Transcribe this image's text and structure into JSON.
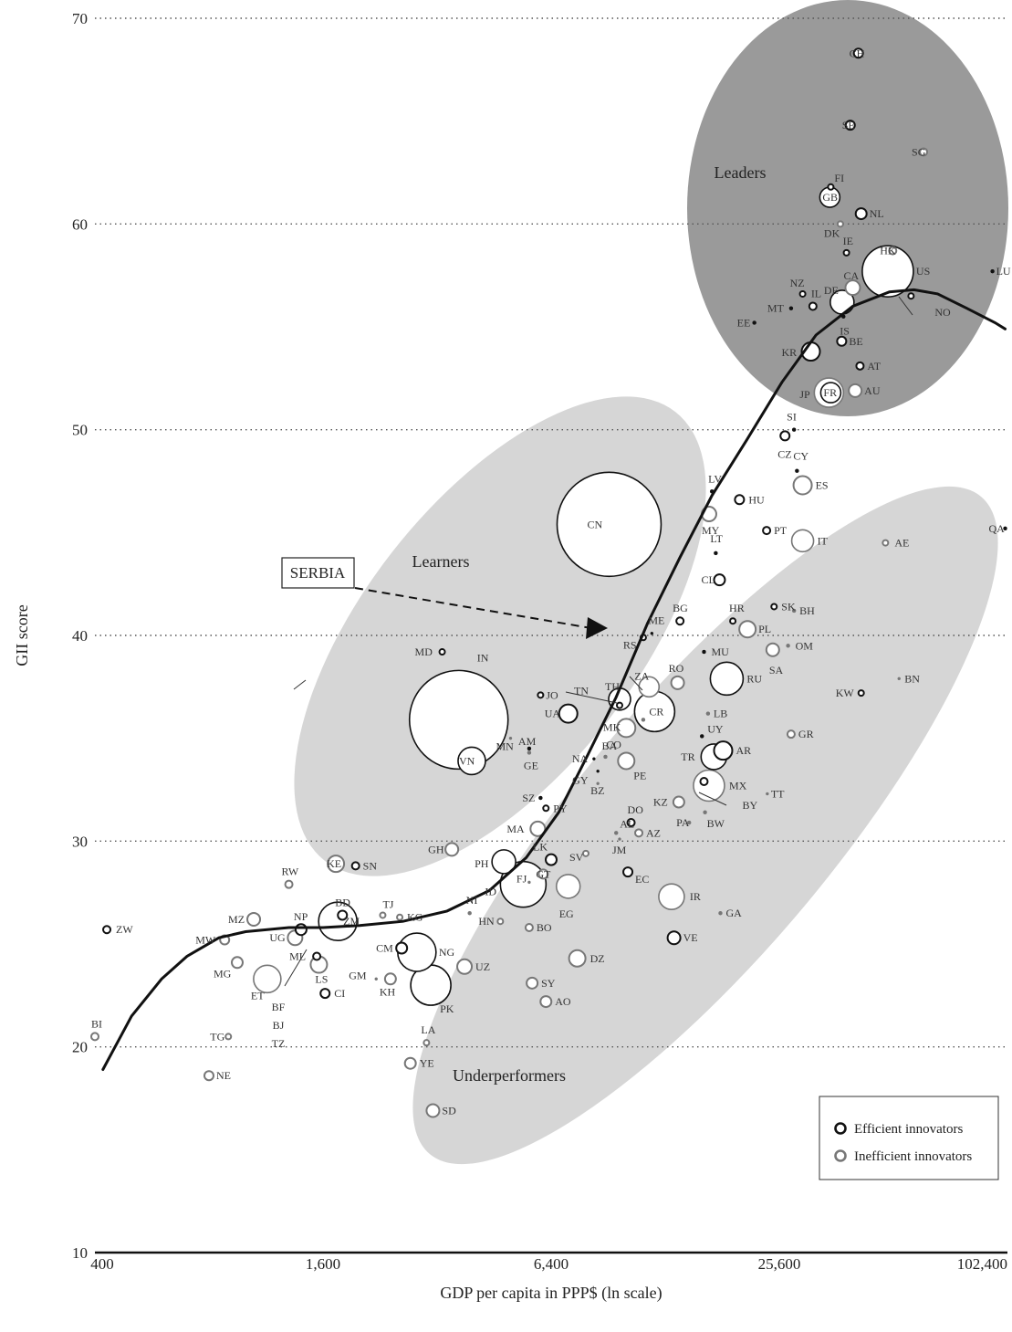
{
  "chart_data": {
    "type": "scatter",
    "xlabel": "GDP per capita in PPP$ (ln scale)",
    "ylabel": "GII score",
    "x_scale": "log",
    "xlim": [
      400,
      102400
    ],
    "ylim": [
      10,
      70
    ],
    "x_ticks": [
      400,
      1600,
      6400,
      25600,
      102400
    ],
    "x_tick_labels": [
      "400",
      "1,600",
      "6,400",
      "25,600",
      "102,400"
    ],
    "y_ticks": [
      10,
      20,
      30,
      40,
      50,
      60,
      70
    ],
    "y_tick_labels": [
      "10",
      "20",
      "30",
      "40",
      "50",
      "60",
      "70"
    ],
    "grid": "horizontal dotted",
    "groups": [
      "Leaders",
      "Learners",
      "Underperformers"
    ],
    "annotation": "SERBIA",
    "legend": {
      "position": "bottom-right",
      "entries": [
        {
          "label": "Efficient innovators",
          "color": "#111111"
        },
        {
          "label": "Inefficient innovators",
          "color": "#777777"
        }
      ]
    },
    "colors": {
      "efficient": "#111111",
      "inefficient": "#777777",
      "leaders_bg": "#9a9a9a",
      "group_bg": "#d6d6d6"
    },
    "trend": [
      [
        420,
        18.9
      ],
      [
        500,
        21.5
      ],
      [
        600,
        23.3
      ],
      [
        700,
        24.4
      ],
      [
        850,
        25.3
      ],
      [
        1000,
        25.6
      ],
      [
        1300,
        25.8
      ],
      [
        1600,
        25.8
      ],
      [
        2000,
        25.9
      ],
      [
        2600,
        26.1
      ],
      [
        3400,
        26.6
      ],
      [
        4400,
        27.6
      ],
      [
        5500,
        29.2
      ],
      [
        6700,
        31.4
      ],
      [
        8000,
        34.2
      ],
      [
        9500,
        37.0
      ],
      [
        11500,
        40.6
      ],
      [
        14000,
        43.8
      ],
      [
        17000,
        46.8
      ],
      [
        21000,
        49.5
      ],
      [
        26000,
        52.3
      ],
      [
        32000,
        54.6
      ],
      [
        40000,
        56.0
      ],
      [
        50000,
        56.7
      ],
      [
        58000,
        56.8
      ],
      [
        67000,
        56.6
      ],
      [
        80000,
        55.9
      ],
      [
        95000,
        55.2
      ],
      [
        101000,
        54.9
      ]
    ],
    "points": [
      {
        "label": "CH",
        "gdp": 41400,
        "gii": 68.3,
        "size": 5,
        "type": "eff"
      },
      {
        "label": "SE",
        "gdp": 39400,
        "gii": 64.8,
        "size": 5,
        "type": "eff"
      },
      {
        "label": "SG",
        "gdp": 61500,
        "gii": 63.5,
        "size": 4,
        "type": "ineff"
      },
      {
        "label": "FI",
        "gdp": 35000,
        "gii": 61.8,
        "size": 3,
        "type": "eff"
      },
      {
        "label": "GB",
        "gdp": 34800,
        "gii": 61.3,
        "size": 11,
        "type": "eff"
      },
      {
        "label": "NL",
        "gdp": 42100,
        "gii": 60.5,
        "size": 6,
        "type": "eff"
      },
      {
        "label": "DK",
        "gdp": 37100,
        "gii": 60.0,
        "size": 3,
        "type": "ineff"
      },
      {
        "label": "IE",
        "gdp": 38500,
        "gii": 58.6,
        "size": 3,
        "type": "eff"
      },
      {
        "label": "HK",
        "gdp": 51000,
        "gii": 58.7,
        "size": 4,
        "type": "ineff"
      },
      {
        "label": "US",
        "gdp": 49500,
        "gii": 57.7,
        "size": 28,
        "type": "eff"
      },
      {
        "label": "LU",
        "gdp": 93500,
        "gii": 57.7,
        "size": 2,
        "type": "eff"
      },
      {
        "label": "NZ",
        "gdp": 29500,
        "gii": 56.6,
        "size": 3,
        "type": "eff"
      },
      {
        "label": "CA",
        "gdp": 40000,
        "gii": 56.9,
        "size": 8,
        "type": "ineff"
      },
      {
        "label": "DE",
        "gdp": 37500,
        "gii": 56.2,
        "size": 13,
        "type": "eff"
      },
      {
        "label": "IL",
        "gdp": 31400,
        "gii": 56.0,
        "size": 4,
        "type": "eff"
      },
      {
        "label": "MT",
        "gdp": 27500,
        "gii": 55.9,
        "size": 2,
        "type": "eff"
      },
      {
        "label": "IS",
        "gdp": 37800,
        "gii": 55.5,
        "size": 2,
        "type": "eff"
      },
      {
        "label": "NO",
        "gdp": 57000,
        "gii": 56.5,
        "size": 3,
        "type": "eff"
      },
      {
        "label": "EE",
        "gdp": 22000,
        "gii": 55.2,
        "size": 2,
        "type": "eff"
      },
      {
        "label": "KR",
        "gdp": 31000,
        "gii": 53.8,
        "size": 10,
        "type": "eff"
      },
      {
        "label": "BE",
        "gdp": 37400,
        "gii": 54.3,
        "size": 5,
        "type": "eff"
      },
      {
        "label": "AT",
        "gdp": 41800,
        "gii": 53.1,
        "size": 4,
        "type": "eff"
      },
      {
        "label": "JP",
        "gdp": 34600,
        "gii": 51.8,
        "size": 16,
        "type": "ineff"
      },
      {
        "label": "FR",
        "gdp": 35000,
        "gii": 51.8,
        "size": 11,
        "type": "eff"
      },
      {
        "label": "AU",
        "gdp": 40600,
        "gii": 51.9,
        "size": 7,
        "type": "ineff"
      },
      {
        "label": "SI",
        "gdp": 28000,
        "gii": 50.0,
        "size": 2,
        "type": "eff"
      },
      {
        "label": "CZ",
        "gdp": 26500,
        "gii": 49.7,
        "size": 5,
        "type": "eff"
      },
      {
        "label": "CY",
        "gdp": 28500,
        "gii": 48.0,
        "size": 2,
        "type": "eff"
      },
      {
        "label": "ES",
        "gdp": 29500,
        "gii": 47.3,
        "size": 10,
        "type": "ineff"
      },
      {
        "label": "LV",
        "gdp": 17000,
        "gii": 47.0,
        "size": 2,
        "type": "eff"
      },
      {
        "label": "HU",
        "gdp": 20100,
        "gii": 46.6,
        "size": 5,
        "type": "eff"
      },
      {
        "label": "MY",
        "gdp": 16700,
        "gii": 45.9,
        "size": 8,
        "type": "ineff"
      },
      {
        "label": "PT",
        "gdp": 23700,
        "gii": 45.1,
        "size": 4,
        "type": "eff"
      },
      {
        "label": "CN",
        "gdp": 9100,
        "gii": 45.4,
        "size": 57,
        "type": "eff"
      },
      {
        "label": "IT",
        "gdp": 29500,
        "gii": 44.6,
        "size": 12,
        "type": "ineff"
      },
      {
        "label": "QA",
        "gdp": 101000,
        "gii": 45.2,
        "size": 2,
        "type": "eff"
      },
      {
        "label": "AE",
        "gdp": 48800,
        "gii": 44.5,
        "size": 3,
        "type": "ineff"
      },
      {
        "label": "LT",
        "gdp": 17400,
        "gii": 44.0,
        "size": 2,
        "type": "eff"
      },
      {
        "label": "CL",
        "gdp": 17800,
        "gii": 42.7,
        "size": 6,
        "type": "eff"
      },
      {
        "label": "SK",
        "gdp": 24800,
        "gii": 41.4,
        "size": 3,
        "type": "eff"
      },
      {
        "label": "BH",
        "gdp": 28000,
        "gii": 41.2,
        "size": 2,
        "type": "ineff"
      },
      {
        "label": "BG",
        "gdp": 14000,
        "gii": 40.7,
        "size": 4,
        "type": "eff"
      },
      {
        "label": "HR",
        "gdp": 19300,
        "gii": 40.7,
        "size": 3,
        "type": "eff"
      },
      {
        "label": "PL",
        "gdp": 21100,
        "gii": 40.3,
        "size": 9,
        "type": "ineff"
      },
      {
        "label": "ME",
        "gdp": 11800,
        "gii": 40.1,
        "size": 1.5,
        "type": "eff"
      },
      {
        "label": "RS",
        "gdp": 11200,
        "gii": 39.9,
        "size": 3,
        "type": "eff"
      },
      {
        "label": "OM",
        "gdp": 27000,
        "gii": 39.5,
        "size": 2,
        "type": "ineff"
      },
      {
        "label": "SA",
        "gdp": 24600,
        "gii": 39.3,
        "size": 7,
        "type": "ineff"
      },
      {
        "label": "MD",
        "gdp": 3300,
        "gii": 39.2,
        "size": 3,
        "type": "eff"
      },
      {
        "label": "MU",
        "gdp": 16200,
        "gii": 39.2,
        "size": 2,
        "type": "eff"
      },
      {
        "label": "RU",
        "gdp": 18600,
        "gii": 37.9,
        "size": 18,
        "type": "eff"
      },
      {
        "label": "BN",
        "gdp": 53000,
        "gii": 37.9,
        "size": 1.5,
        "type": "ineff"
      },
      {
        "label": "RO",
        "gdp": 13800,
        "gii": 37.7,
        "size": 7,
        "type": "ineff"
      },
      {
        "label": "ZA",
        "gdp": 11600,
        "gii": 37.5,
        "size": 11,
        "type": "ineff"
      },
      {
        "label": "IN",
        "gdp": 3650,
        "gii": 35.9,
        "size": 54,
        "type": "eff"
      },
      {
        "label": "TH",
        "gdp": 9700,
        "gii": 36.9,
        "size": 12,
        "type": "eff"
      },
      {
        "label": "JO",
        "gdp": 6000,
        "gii": 37.1,
        "size": 3,
        "type": "eff"
      },
      {
        "label": "KW",
        "gdp": 42100,
        "gii": 37.2,
        "size": 3,
        "type": "eff"
      },
      {
        "label": "TN",
        "gdp": 9700,
        "gii": 36.6,
        "size": 3,
        "type": "eff"
      },
      {
        "label": "CR",
        "gdp": 12000,
        "gii": 36.3,
        "size": 22,
        "type": "eff"
      },
      {
        "label": "LB",
        "gdp": 16600,
        "gii": 36.2,
        "size": 2,
        "type": "ineff"
      },
      {
        "label": "UA",
        "gdp": 7100,
        "gii": 36.2,
        "size": 10,
        "type": "eff"
      },
      {
        "label": "MK",
        "gdp": 11200,
        "gii": 35.9,
        "size": 2,
        "type": "ineff"
      },
      {
        "label": "CO",
        "gdp": 10100,
        "gii": 35.5,
        "size": 10,
        "type": "ineff"
      },
      {
        "label": "GR",
        "gdp": 27500,
        "gii": 35.2,
        "size": 4,
        "type": "ineff"
      },
      {
        "label": "UY",
        "gdp": 16000,
        "gii": 35.1,
        "size": 2,
        "type": "eff"
      },
      {
        "label": "MN",
        "gdp": 5000,
        "gii": 35.0,
        "size": 1.5,
        "type": "ineff"
      },
      {
        "label": "AM",
        "gdp": 5600,
        "gii": 34.5,
        "size": 2,
        "type": "eff"
      },
      {
        "label": "GE",
        "gdp": 5600,
        "gii": 34.3,
        "size": 2,
        "type": "ineff"
      },
      {
        "label": "AR",
        "gdp": 18200,
        "gii": 34.4,
        "size": 10,
        "type": "eff"
      },
      {
        "label": "TR",
        "gdp": 17200,
        "gii": 34.1,
        "size": 14,
        "type": "eff"
      },
      {
        "label": "BA",
        "gdp": 8900,
        "gii": 34.1,
        "size": 2,
        "type": "ineff"
      },
      {
        "label": "NA",
        "gdp": 8300,
        "gii": 34.0,
        "size": 1.5,
        "type": "eff"
      },
      {
        "label": "VN",
        "gdp": 3950,
        "gii": 33.9,
        "size": 15,
        "type": "eff"
      },
      {
        "label": "PE",
        "gdp": 10100,
        "gii": 33.9,
        "size": 9,
        "type": "ineff"
      },
      {
        "label": "GY",
        "gdp": 8500,
        "gii": 33.4,
        "size": 1.5,
        "type": "eff"
      },
      {
        "label": "BY",
        "gdp": 16200,
        "gii": 32.9,
        "size": 4,
        "type": "eff"
      },
      {
        "label": "MX",
        "gdp": 16700,
        "gii": 32.7,
        "size": 17,
        "type": "ineff"
      },
      {
        "label": "BZ",
        "gdp": 8500,
        "gii": 32.8,
        "size": 1.5,
        "type": "ineff"
      },
      {
        "label": "TT",
        "gdp": 23800,
        "gii": 32.3,
        "size": 1.5,
        "type": "ineff"
      },
      {
        "label": "SZ",
        "gdp": 6000,
        "gii": 32.1,
        "size": 2,
        "type": "eff"
      },
      {
        "label": "KZ",
        "gdp": 13900,
        "gii": 31.9,
        "size": 6,
        "type": "ineff"
      },
      {
        "label": "PY",
        "gdp": 6200,
        "gii": 31.6,
        "size": 3,
        "type": "eff"
      },
      {
        "label": "BW",
        "gdp": 16300,
        "gii": 31.4,
        "size": 2,
        "type": "ineff"
      },
      {
        "label": "DO",
        "gdp": 10400,
        "gii": 30.9,
        "size": 4,
        "type": "eff"
      },
      {
        "label": "PA",
        "gdp": 14800,
        "gii": 30.9,
        "size": 2,
        "type": "ineff"
      },
      {
        "label": "MA",
        "gdp": 5900,
        "gii": 30.6,
        "size": 8,
        "type": "ineff"
      },
      {
        "label": "AL",
        "gdp": 9500,
        "gii": 30.4,
        "size": 2,
        "type": "ineff"
      },
      {
        "label": "AZ",
        "gdp": 10900,
        "gii": 30.4,
        "size": 4,
        "type": "ineff"
      },
      {
        "label": "JM",
        "gdp": 9700,
        "gii": 30.1,
        "size": 1.5,
        "type": "ineff"
      },
      {
        "label": "GH",
        "gdp": 3500,
        "gii": 29.6,
        "size": 7,
        "type": "ineff"
      },
      {
        "label": "SV",
        "gdp": 7900,
        "gii": 29.4,
        "size": 3,
        "type": "ineff"
      },
      {
        "label": "LK",
        "gdp": 6400,
        "gii": 29.1,
        "size": 6,
        "type": "eff"
      },
      {
        "label": "PH",
        "gdp": 4800,
        "gii": 29.0,
        "size": 13,
        "type": "eff"
      },
      {
        "label": "KE",
        "gdp": 1730,
        "gii": 28.9,
        "size": 9,
        "type": "ineff"
      },
      {
        "label": "SN",
        "gdp": 1950,
        "gii": 28.8,
        "size": 4,
        "type": "eff"
      },
      {
        "label": "EC",
        "gdp": 10200,
        "gii": 28.5,
        "size": 5,
        "type": "eff"
      },
      {
        "label": "GT",
        "gdp": 6100,
        "gii": 28.4,
        "size": 5,
        "type": "ineff"
      },
      {
        "label": "FJ",
        "gdp": 5600,
        "gii": 28.0,
        "size": 1.5,
        "type": "ineff"
      },
      {
        "label": "ID",
        "gdp": 5400,
        "gii": 27.9,
        "size": 25,
        "type": "eff"
      },
      {
        "label": "RW",
        "gdp": 1300,
        "gii": 27.9,
        "size": 4,
        "type": "ineff"
      },
      {
        "label": "EG",
        "gdp": 7100,
        "gii": 27.8,
        "size": 13,
        "type": "ineff"
      },
      {
        "label": "IR",
        "gdp": 13300,
        "gii": 27.3,
        "size": 14,
        "type": "ineff"
      },
      {
        "label": "NI",
        "gdp": 3900,
        "gii": 26.5,
        "size": 2,
        "type": "ineff"
      },
      {
        "label": "GA",
        "gdp": 17900,
        "gii": 26.5,
        "size": 2,
        "type": "ineff"
      },
      {
        "label": "TJ",
        "gdp": 2300,
        "gii": 26.4,
        "size": 3,
        "type": "ineff"
      },
      {
        "label": "BD",
        "gdp": 1800,
        "gii": 26.4,
        "size": 5,
        "type": "eff"
      },
      {
        "label": "KG",
        "gdp": 2550,
        "gii": 26.3,
        "size": 3,
        "type": "ineff"
      },
      {
        "label": "ZM",
        "gdp": 1750,
        "gii": 26.1,
        "size": 21,
        "type": "eff"
      },
      {
        "label": "MZ",
        "gdp": 1050,
        "gii": 26.2,
        "size": 7,
        "type": "ineff"
      },
      {
        "label": "HN",
        "gdp": 4700,
        "gii": 26.1,
        "size": 3,
        "type": "ineff"
      },
      {
        "label": "ZW",
        "gdp": 430,
        "gii": 25.7,
        "size": 4,
        "type": "eff"
      },
      {
        "label": "NP",
        "gdp": 1400,
        "gii": 25.7,
        "size": 6,
        "type": "eff"
      },
      {
        "label": "BO",
        "gdp": 5600,
        "gii": 25.8,
        "size": 4,
        "type": "ineff"
      },
      {
        "label": "UG",
        "gdp": 1350,
        "gii": 25.3,
        "size": 8,
        "type": "ineff"
      },
      {
        "label": "VE",
        "gdp": 13500,
        "gii": 25.3,
        "size": 7,
        "type": "eff"
      },
      {
        "label": "MW",
        "gdp": 880,
        "gii": 25.2,
        "size": 5,
        "type": "ineff"
      },
      {
        "label": "MG",
        "gdp": 950,
        "gii": 24.1,
        "size": 6,
        "type": "ineff"
      },
      {
        "label": "ML",
        "gdp": 1540,
        "gii": 24.4,
        "size": 4,
        "type": "eff"
      },
      {
        "label": "CM",
        "gdp": 2580,
        "gii": 24.8,
        "size": 6,
        "type": "eff"
      },
      {
        "label": "NG",
        "gdp": 2830,
        "gii": 24.6,
        "size": 21,
        "type": "eff"
      },
      {
        "label": "DZ",
        "gdp": 7500,
        "gii": 24.3,
        "size": 9,
        "type": "ineff"
      },
      {
        "label": "LS",
        "gdp": 1560,
        "gii": 24.0,
        "size": 9,
        "type": "ineff"
      },
      {
        "label": "UZ",
        "gdp": 3780,
        "gii": 23.9,
        "size": 8,
        "type": "ineff"
      },
      {
        "label": "ET",
        "gdp": 1140,
        "gii": 23.3,
        "size": 15,
        "type": "ineff"
      },
      {
        "label": "GM",
        "gdp": 2210,
        "gii": 23.3,
        "size": 1.5,
        "type": "ineff"
      },
      {
        "label": "KH",
        "gdp": 2410,
        "gii": 23.3,
        "size": 6,
        "type": "ineff"
      },
      {
        "label": "PK",
        "gdp": 3080,
        "gii": 23.0,
        "size": 22,
        "type": "eff"
      },
      {
        "label": "SY",
        "gdp": 5700,
        "gii": 23.1,
        "size": 6,
        "type": "ineff"
      },
      {
        "label": "CI",
        "gdp": 1620,
        "gii": 22.6,
        "size": 5,
        "type": "eff"
      },
      {
        "label": "AO",
        "gdp": 6200,
        "gii": 22.2,
        "size": 6,
        "type": "ineff"
      },
      {
        "label": "BI",
        "gdp": 400,
        "gii": 20.5,
        "size": 4,
        "type": "ineff"
      },
      {
        "label": "TG",
        "gdp": 900,
        "gii": 20.5,
        "size": 3,
        "type": "ineff"
      },
      {
        "label": "LA",
        "gdp": 3000,
        "gii": 20.2,
        "size": 3,
        "type": "ineff"
      },
      {
        "label": "YE",
        "gdp": 2720,
        "gii": 19.2,
        "size": 6,
        "type": "ineff"
      },
      {
        "label": "NE",
        "gdp": 800,
        "gii": 18.6,
        "size": 5,
        "type": "ineff"
      },
      {
        "label": "SD",
        "gdp": 3120,
        "gii": 16.9,
        "size": 7,
        "type": "ineff"
      }
    ],
    "side_labels": [
      "BF",
      "BJ",
      "TZ"
    ]
  }
}
